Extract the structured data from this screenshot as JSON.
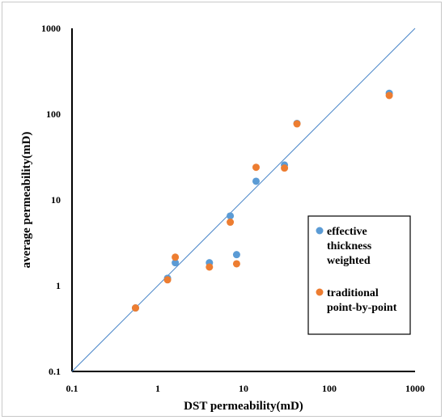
{
  "chart_data": {
    "type": "scatter",
    "title": "",
    "xlabel": "DST permeability(mD)",
    "ylabel": "average permeability(mD)",
    "xscale": "log",
    "yscale": "log",
    "xlim": [
      0.1,
      1000
    ],
    "ylim": [
      0.1,
      1000
    ],
    "x_ticks": [
      "0.1",
      "1",
      "10",
      "100",
      "1000"
    ],
    "y_ticks": [
      "0.1",
      "1",
      "10",
      "100",
      "1000"
    ],
    "grid": false,
    "legend_position": "right",
    "reference_line": {
      "name": "",
      "points": [
        [
          0.1,
          0.1
        ],
        [
          1000,
          1000
        ]
      ],
      "color": "#4a86c8"
    },
    "series": [
      {
        "name": "effective thickness weighted",
        "legend_lines": [
          "effective",
          "thickness",
          "weighted"
        ],
        "color": "#5b9bd5",
        "points": [
          [
            0.55,
            0.55
          ],
          [
            1.3,
            1.22
          ],
          [
            1.6,
            1.85
          ],
          [
            4.0,
            1.85
          ],
          [
            7.0,
            6.5
          ],
          [
            8.3,
            2.3
          ],
          [
            14,
            16.5
          ],
          [
            30,
            25.5
          ],
          [
            42,
            78
          ],
          [
            500,
            175
          ]
        ]
      },
      {
        "name": "traditional point-by-point",
        "legend_lines": [
          "traditional",
          "point-by-point"
        ],
        "color": "#ed7d31",
        "points": [
          [
            0.55,
            0.55
          ],
          [
            1.3,
            1.17
          ],
          [
            1.6,
            2.15
          ],
          [
            4.0,
            1.65
          ],
          [
            7.0,
            5.5
          ],
          [
            8.3,
            1.8
          ],
          [
            14,
            24
          ],
          [
            30,
            23.5
          ],
          [
            42,
            77
          ],
          [
            500,
            165
          ]
        ]
      }
    ]
  }
}
